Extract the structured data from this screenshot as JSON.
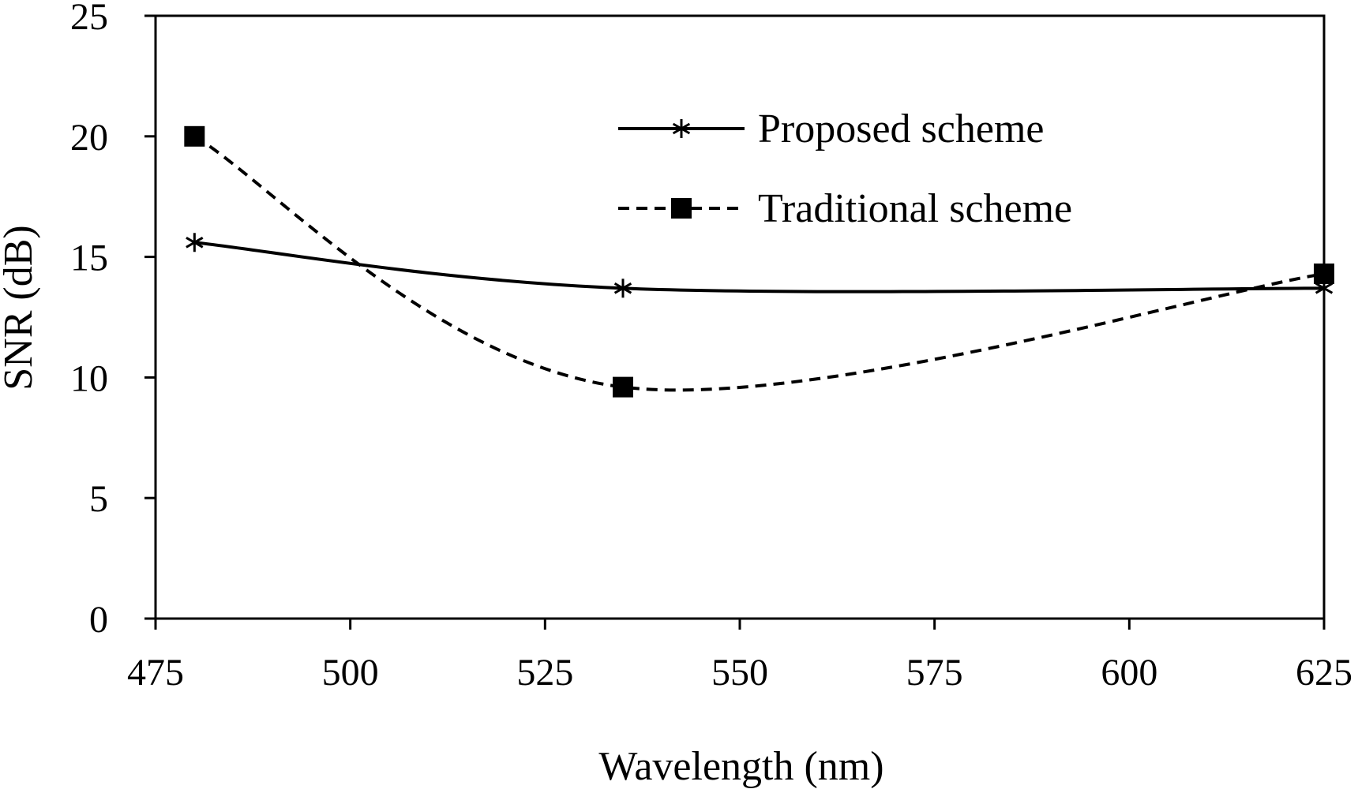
{
  "chart_data": {
    "type": "line",
    "title": "",
    "xlabel": "Wavelength (nm)",
    "ylabel": "SNR (dB)",
    "xlim": [
      475,
      625
    ],
    "ylim": [
      0,
      25
    ],
    "xticks": [
      475,
      500,
      525,
      550,
      575,
      600,
      625
    ],
    "yticks": [
      0,
      5,
      10,
      15,
      20,
      25
    ],
    "grid": false,
    "legend_position": "top-right",
    "series": [
      {
        "name": "Proposed scheme",
        "marker": "asterisk",
        "line_style": "solid",
        "x": [
          480,
          535,
          625
        ],
        "y": [
          15.6,
          13.7,
          13.7
        ]
      },
      {
        "name": "Traditional scheme",
        "marker": "square",
        "line_style": "dashed",
        "x": [
          480,
          535,
          625
        ],
        "y": [
          20.0,
          9.6,
          14.3
        ]
      }
    ]
  }
}
